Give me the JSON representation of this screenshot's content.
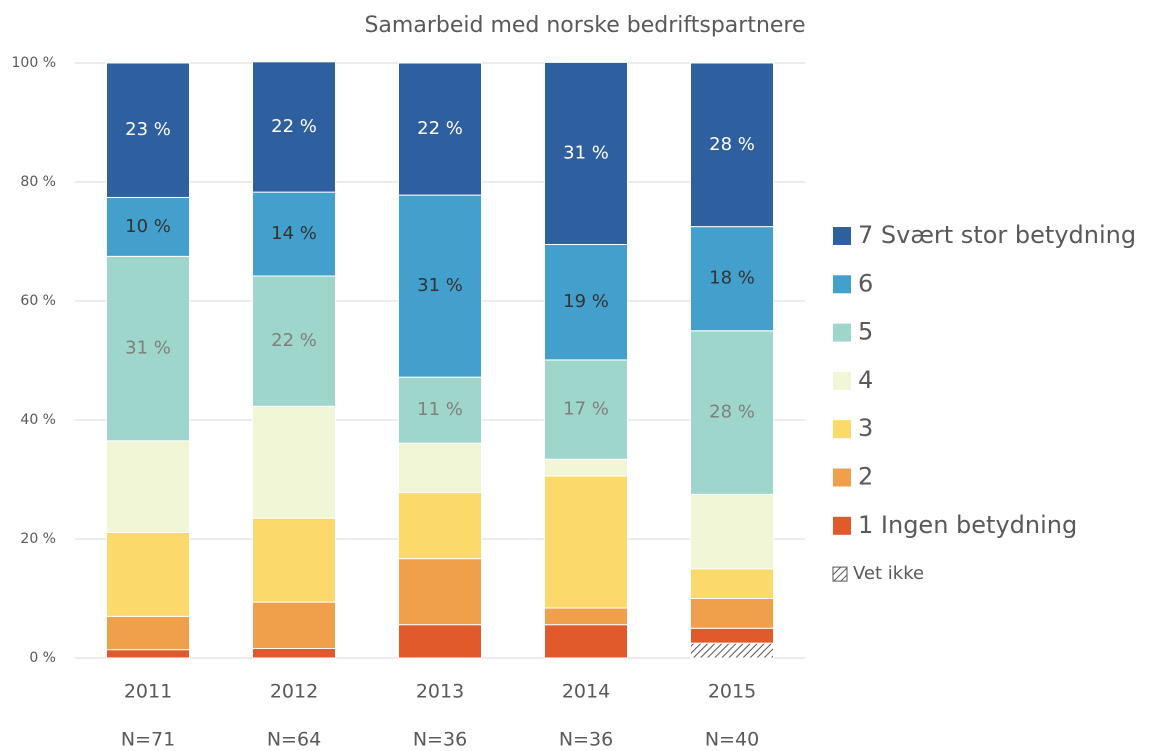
{
  "chart_data": {
    "type": "stacked_bar",
    "title": "Samarbeid med norske bedriftspartnere",
    "categories": [
      "2011",
      "2012",
      "2013",
      "2014",
      "2015"
    ],
    "category_sublabels": [
      "N=71",
      "N=64",
      "N=36",
      "N=36",
      "N=40"
    ],
    "ylim": [
      0,
      100
    ],
    "yticks": [
      {
        "value": 0,
        "label": "0 %"
      },
      {
        "value": 20,
        "label": "20 %"
      },
      {
        "value": 40,
        "label": "40 %"
      },
      {
        "value": 60,
        "label": "60 %"
      },
      {
        "value": 80,
        "label": "80 %"
      },
      {
        "value": 100,
        "label": "100 %"
      }
    ],
    "grid": true,
    "legend": "right",
    "series": [
      {
        "name": "Vet ikke",
        "color": "#555555",
        "pattern": "hatch",
        "values": [
          0,
          0,
          0,
          0,
          2.5
        ]
      },
      {
        "name": "1 Ingen betydning",
        "color": "#e05a2b",
        "values": [
          1.4,
          1.6,
          5.6,
          5.6,
          2.5
        ]
      },
      {
        "name": "2",
        "color": "#f0a04b",
        "values": [
          5.6,
          7.8,
          11.1,
          2.8,
          5.0
        ]
      },
      {
        "name": "3",
        "color": "#fbd96b",
        "values": [
          14.1,
          14.1,
          11.1,
          22.2,
          5.0
        ]
      },
      {
        "name": "4",
        "color": "#f1f6d6",
        "values": [
          15.4,
          18.8,
          8.3,
          2.8,
          12.5
        ]
      },
      {
        "name": "5",
        "color": "#9ed6cb",
        "label_color": "#7f7f7f",
        "values": [
          31.0,
          21.9,
          11.1,
          16.7,
          27.5
        ],
        "value_labels": [
          "31 %",
          "22 %",
          "11 %",
          "17 %",
          "28 %"
        ]
      },
      {
        "name": "6",
        "color": "#43a0cc",
        "label_color": "#333333",
        "values": [
          9.9,
          14.1,
          30.6,
          19.4,
          17.5
        ],
        "value_labels": [
          "10 %",
          "14 %",
          "31 %",
          "19 %",
          "18 %"
        ]
      },
      {
        "name": "7 Svært stor betydning",
        "color": "#2e5f9e",
        "label_color": "#ffffff",
        "values": [
          22.6,
          21.9,
          22.2,
          30.6,
          27.5
        ],
        "value_labels": [
          "23 %",
          "22 %",
          "22 %",
          "31 %",
          "28 %"
        ]
      }
    ]
  }
}
